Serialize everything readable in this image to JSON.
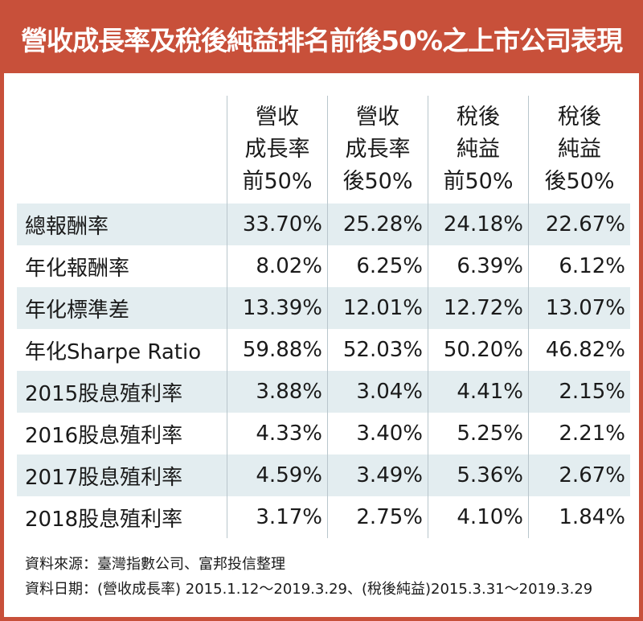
{
  "title": "營收成長率及稅後純益排名前後50%之上市公司表現",
  "columns": [
    [
      "營收",
      "成長率",
      "前50%"
    ],
    [
      "營收",
      "成長率",
      "後50%"
    ],
    [
      "稅後",
      "純益",
      "前50%"
    ],
    [
      "稅後",
      "純益",
      "後50%"
    ]
  ],
  "rows": [
    {
      "label": "總報酬率",
      "values": [
        "33.70%",
        "25.28%",
        "24.18%",
        "22.67%"
      ]
    },
    {
      "label": "年化報酬率",
      "values": [
        "8.02%",
        "6.25%",
        "6.39%",
        "6.12%"
      ]
    },
    {
      "label": "年化標準差",
      "values": [
        "13.39%",
        "12.01%",
        "12.72%",
        "13.07%"
      ]
    },
    {
      "label": "年化Sharpe Ratio",
      "values": [
        "59.88%",
        "52.03%",
        "50.20%",
        "46.82%"
      ]
    },
    {
      "label": "2015股息殖利率",
      "values": [
        "3.88%",
        "3.04%",
        "4.41%",
        "2.15%"
      ]
    },
    {
      "label": "2016股息殖利率",
      "values": [
        "4.33%",
        "3.40%",
        "5.25%",
        "2.21%"
      ]
    },
    {
      "label": "2017股息殖利率",
      "values": [
        "4.59%",
        "3.49%",
        "5.36%",
        "2.67%"
      ]
    },
    {
      "label": "2018股息殖利率",
      "values": [
        "3.17%",
        "2.75%",
        "4.10%",
        "1.84%"
      ]
    }
  ],
  "notes": {
    "source": "資料來源：臺灣指數公司、富邦投信整理",
    "date": "資料日期：(營收成長率) 2015.1.12～2019.3.29、(稅後純益)2015.3.31～2019.3.29"
  },
  "colors": {
    "title_bar": "#c8503a",
    "row_shade": "#e3edf0",
    "divider": "#b9c6cc"
  }
}
